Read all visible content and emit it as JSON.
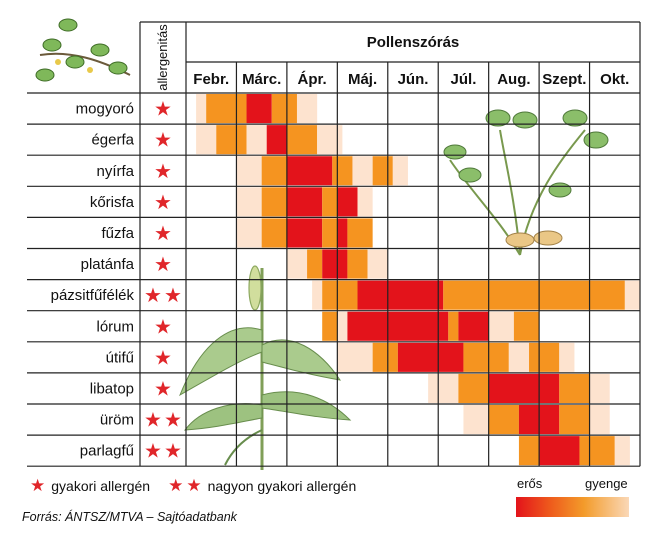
{
  "chart_data": {
    "type": "heatmap",
    "title": "Pollenszórás",
    "allergen_header": "allergenitás",
    "months": [
      "Febr.",
      "Márc.",
      "Ápr.",
      "Máj.",
      "Jún.",
      "Júl.",
      "Aug.",
      "Szept.",
      "Okt."
    ],
    "intensity_levels": [
      "very_light",
      "light",
      "orange",
      "red"
    ],
    "colors": {
      "very_light": "#fde3cf",
      "light": "#f9c48e",
      "orange": "#f59420",
      "red": "#e3131b",
      "star": "#e0262a",
      "grid": "#222222"
    },
    "rows": [
      {
        "name": "mogyoró",
        "stars": 1,
        "segments": [
          [
            0.2,
            0.4,
            "very_light"
          ],
          [
            0.4,
            1.2,
            "orange"
          ],
          [
            1.2,
            1.7,
            "red"
          ],
          [
            1.7,
            2.2,
            "orange"
          ],
          [
            2.2,
            2.6,
            "very_light"
          ]
        ]
      },
      {
        "name": "égerfa",
        "stars": 1,
        "segments": [
          [
            0.2,
            0.6,
            "very_light"
          ],
          [
            0.6,
            1.2,
            "orange"
          ],
          [
            1.2,
            1.6,
            "very_light"
          ],
          [
            1.6,
            2.0,
            "red"
          ],
          [
            2.0,
            2.6,
            "orange"
          ],
          [
            2.6,
            3.1,
            "very_light"
          ]
        ]
      },
      {
        "name": "nyírfa",
        "stars": 1,
        "segments": [
          [
            1.0,
            1.5,
            "very_light"
          ],
          [
            1.5,
            2.0,
            "orange"
          ],
          [
            2.0,
            2.9,
            "red"
          ],
          [
            2.9,
            3.3,
            "orange"
          ],
          [
            3.3,
            3.7,
            "very_light"
          ],
          [
            3.7,
            4.1,
            "orange"
          ],
          [
            4.1,
            4.4,
            "very_light"
          ]
        ]
      },
      {
        "name": "kőrisfa",
        "stars": 1,
        "segments": [
          [
            1.0,
            1.5,
            "very_light"
          ],
          [
            1.5,
            2.0,
            "orange"
          ],
          [
            2.0,
            2.7,
            "red"
          ],
          [
            2.7,
            3.0,
            "orange"
          ],
          [
            3.0,
            3.4,
            "red"
          ],
          [
            3.4,
            3.7,
            "very_light"
          ]
        ]
      },
      {
        "name": "fűzfa",
        "stars": 1,
        "segments": [
          [
            1.0,
            1.5,
            "very_light"
          ],
          [
            1.5,
            2.0,
            "orange"
          ],
          [
            2.0,
            2.7,
            "red"
          ],
          [
            2.7,
            3.0,
            "orange"
          ],
          [
            3.0,
            3.2,
            "red"
          ],
          [
            3.2,
            3.7,
            "orange"
          ]
        ]
      },
      {
        "name": "platánfa",
        "stars": 1,
        "segments": [
          [
            2.0,
            2.4,
            "very_light"
          ],
          [
            2.4,
            2.7,
            "orange"
          ],
          [
            2.7,
            3.2,
            "red"
          ],
          [
            3.2,
            3.6,
            "orange"
          ],
          [
            3.6,
            4.0,
            "very_light"
          ]
        ]
      },
      {
        "name": "pázsitfűfélék",
        "stars": 2,
        "segments": [
          [
            2.5,
            2.7,
            "very_light"
          ],
          [
            2.7,
            3.4,
            "orange"
          ],
          [
            3.4,
            5.1,
            "red"
          ],
          [
            5.1,
            8.7,
            "orange"
          ],
          [
            8.7,
            9.0,
            "very_light"
          ]
        ]
      },
      {
        "name": "lórum",
        "stars": 1,
        "segments": [
          [
            2.7,
            3.0,
            "orange"
          ],
          [
            3.0,
            3.2,
            "very_light"
          ],
          [
            3.2,
            5.2,
            "red"
          ],
          [
            5.2,
            5.4,
            "orange"
          ],
          [
            5.4,
            6.0,
            "red"
          ],
          [
            6.0,
            6.5,
            "very_light"
          ],
          [
            6.5,
            7.0,
            "orange"
          ]
        ]
      },
      {
        "name": "útifű",
        "stars": 1,
        "segments": [
          [
            3.0,
            3.7,
            "very_light"
          ],
          [
            3.7,
            4.2,
            "orange"
          ],
          [
            4.2,
            5.5,
            "red"
          ],
          [
            5.5,
            6.4,
            "orange"
          ],
          [
            6.4,
            6.8,
            "very_light"
          ],
          [
            6.8,
            7.4,
            "orange"
          ],
          [
            7.4,
            7.7,
            "very_light"
          ]
        ]
      },
      {
        "name": "libatop",
        "stars": 1,
        "segments": [
          [
            4.8,
            5.4,
            "very_light"
          ],
          [
            5.4,
            6.0,
            "orange"
          ],
          [
            6.0,
            7.4,
            "red"
          ],
          [
            7.4,
            8.0,
            "orange"
          ],
          [
            8.0,
            8.4,
            "very_light"
          ]
        ]
      },
      {
        "name": "üröm",
        "stars": 2,
        "segments": [
          [
            5.5,
            6.0,
            "very_light"
          ],
          [
            6.0,
            6.6,
            "orange"
          ],
          [
            6.6,
            7.4,
            "red"
          ],
          [
            7.4,
            8.0,
            "orange"
          ],
          [
            8.0,
            8.4,
            "very_light"
          ]
        ]
      },
      {
        "name": "parlagfű",
        "stars": 2,
        "segments": [
          [
            6.6,
            7.0,
            "orange"
          ],
          [
            7.0,
            7.8,
            "red"
          ],
          [
            7.8,
            8.5,
            "orange"
          ],
          [
            8.5,
            8.8,
            "very_light"
          ]
        ]
      }
    ]
  },
  "legend": {
    "common": "gyakori allergén",
    "very_common": "nagyon gyakori allergén",
    "star_symbol": "★",
    "strong": "erős",
    "weak": "gyenge"
  },
  "source": "Forrás: ÁNTSZ/MTVA – Sajtóadatbank"
}
